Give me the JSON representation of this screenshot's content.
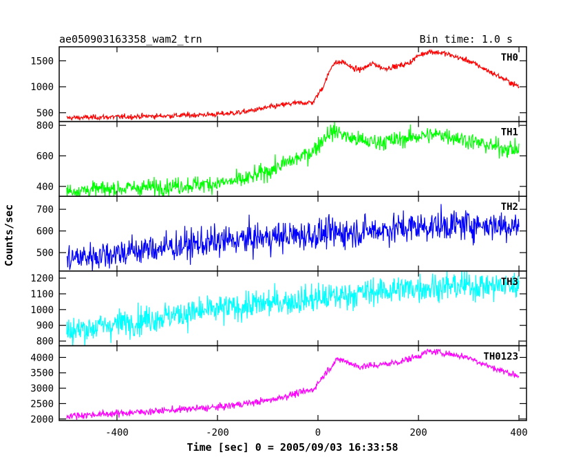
{
  "header": {
    "title": "ae050903163358_wam2_trn",
    "bin_time": "Bin time: 1.0 s"
  },
  "chart_data": {
    "type": "line",
    "xlabel": "Time [sec] 0 = 2005/09/03 16:33:58",
    "ylabel": "Counts/sec",
    "xlim": [
      -515,
      415
    ],
    "x_ticks": [
      -400,
      -200,
      0,
      200,
      400
    ],
    "x_range": [
      -500,
      400
    ],
    "grid": false,
    "panels": [
      {
        "name": "TH0",
        "color": "#ff0000",
        "ylim": [
          330,
          1770
        ],
        "y_ticks": [
          500,
          1000,
          1500
        ],
        "noise": 25,
        "profile": [
          [
            -500,
            400
          ],
          [
            -400,
            420
          ],
          [
            -300,
            440
          ],
          [
            -200,
            470
          ],
          [
            -150,
            510
          ],
          [
            -100,
            600
          ],
          [
            -50,
            680
          ],
          [
            -10,
            700
          ],
          [
            10,
            1000
          ],
          [
            30,
            1450
          ],
          [
            50,
            1480
          ],
          [
            70,
            1350
          ],
          [
            85,
            1330
          ],
          [
            110,
            1450
          ],
          [
            130,
            1350
          ],
          [
            160,
            1400
          ],
          [
            180,
            1450
          ],
          [
            200,
            1600
          ],
          [
            220,
            1680
          ],
          [
            250,
            1650
          ],
          [
            300,
            1500
          ],
          [
            350,
            1250
          ],
          [
            400,
            1000
          ]
        ]
      },
      {
        "name": "TH1",
        "color": "#00ff00",
        "ylim": [
          335,
          825
        ],
        "y_ticks": [
          400,
          600,
          800
        ],
        "noise": 28,
        "profile": [
          [
            -500,
            370
          ],
          [
            -400,
            385
          ],
          [
            -300,
            400
          ],
          [
            -200,
            420
          ],
          [
            -150,
            440
          ],
          [
            -100,
            500
          ],
          [
            -50,
            570
          ],
          [
            -10,
            630
          ],
          [
            20,
            750
          ],
          [
            40,
            760
          ],
          [
            60,
            720
          ],
          [
            100,
            690
          ],
          [
            150,
            700
          ],
          [
            200,
            730
          ],
          [
            250,
            740
          ],
          [
            300,
            700
          ],
          [
            350,
            660
          ],
          [
            400,
            640
          ]
        ]
      },
      {
        "name": "TH2",
        "color": "#0000ff",
        "ylim": [
          415,
          760
        ],
        "y_ticks": [
          500,
          600,
          700
        ],
        "noise": 35,
        "profile": [
          [
            -500,
            470
          ],
          [
            -400,
            500
          ],
          [
            -300,
            525
          ],
          [
            -200,
            550
          ],
          [
            -100,
            570
          ],
          [
            0,
            585
          ],
          [
            100,
            600
          ],
          [
            200,
            620
          ],
          [
            300,
            630
          ],
          [
            400,
            625
          ]
        ]
      },
      {
        "name": "TH3",
        "color": "#00ffff",
        "ylim": [
          770,
          1245
        ],
        "y_ticks": [
          800,
          900,
          1000,
          1100,
          1200
        ],
        "noise": 45,
        "profile": [
          [
            -500,
            860
          ],
          [
            -400,
            910
          ],
          [
            -300,
            960
          ],
          [
            -200,
            1000
          ],
          [
            -100,
            1040
          ],
          [
            0,
            1070
          ],
          [
            100,
            1110
          ],
          [
            200,
            1140
          ],
          [
            300,
            1150
          ],
          [
            400,
            1150
          ]
        ]
      },
      {
        "name": "TH0123",
        "color": "#ff00ff",
        "ylim": [
          1950,
          4380
        ],
        "y_ticks": [
          2000,
          2500,
          3000,
          3500,
          4000
        ],
        "noise": 55,
        "profile": [
          [
            -500,
            2100
          ],
          [
            -400,
            2180
          ],
          [
            -300,
            2280
          ],
          [
            -200,
            2380
          ],
          [
            -100,
            2600
          ],
          [
            -50,
            2800
          ],
          [
            -10,
            2950
          ],
          [
            20,
            3600
          ],
          [
            40,
            3950
          ],
          [
            60,
            3850
          ],
          [
            80,
            3700
          ],
          [
            120,
            3750
          ],
          [
            160,
            3850
          ],
          [
            200,
            4050
          ],
          [
            220,
            4200
          ],
          [
            250,
            4150
          ],
          [
            300,
            4000
          ],
          [
            350,
            3650
          ],
          [
            400,
            3400
          ]
        ]
      }
    ]
  }
}
